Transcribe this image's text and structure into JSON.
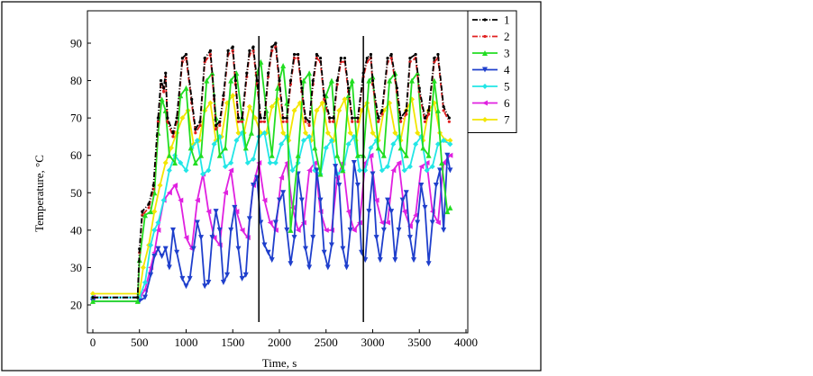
{
  "chart_data": {
    "type": "line",
    "xlabel": "Time, s",
    "ylabel": "Temperature, °C",
    "xlim": [
      0,
      4000
    ],
    "ylim": [
      15,
      92
    ],
    "xticks": [
      0,
      500,
      1000,
      1500,
      2000,
      2500,
      3000,
      3500,
      4000
    ],
    "yticks": [
      20,
      30,
      40,
      50,
      60,
      70,
      80,
      90
    ],
    "grid": false,
    "legend_position": "top-right",
    "vertical_markers": [
      1780,
      2900
    ],
    "series": [
      {
        "name": "1",
        "color": "#000000",
        "marker": "dot",
        "dash": "6,2,1,2",
        "x": [
          0,
          480,
          500,
          530,
          600,
          650,
          700,
          730,
          760,
          780,
          800,
          860,
          900,
          960,
          1000,
          1060,
          1100,
          1150,
          1200,
          1260,
          1300,
          1320,
          1360,
          1400,
          1450,
          1500,
          1530,
          1560,
          1600,
          1650,
          1680,
          1720,
          1760,
          1800,
          1840,
          1880,
          1920,
          1960,
          2000,
          2040,
          2080,
          2120,
          2160,
          2200,
          2240,
          2280,
          2320,
          2360,
          2400,
          2440,
          2480,
          2540,
          2580,
          2620,
          2660,
          2700,
          2740,
          2780,
          2840,
          2900,
          2940,
          2980,
          3000,
          3060,
          3100,
          3160,
          3200,
          3260,
          3300,
          3360,
          3400,
          3460,
          3500,
          3560,
          3600,
          3660,
          3700,
          3760,
          3820
        ],
        "y": [
          22,
          22,
          35,
          45,
          47,
          52,
          70,
          80,
          78,
          82,
          70,
          66,
          70,
          86,
          87,
          75,
          67,
          69,
          86,
          88,
          76,
          68,
          69,
          76,
          88,
          89,
          80,
          70,
          70,
          82,
          88,
          89,
          80,
          70,
          70,
          82,
          89,
          90,
          80,
          70,
          70,
          80,
          87,
          87,
          78,
          70,
          69,
          80,
          87,
          86,
          76,
          70,
          70,
          80,
          86,
          86,
          78,
          70,
          70,
          82,
          86,
          87,
          80,
          70,
          72,
          86,
          87,
          78,
          70,
          72,
          86,
          87,
          78,
          70,
          72,
          86,
          87,
          73,
          70
        ]
      },
      {
        "name": "2",
        "color": "#e02020",
        "marker": "dot",
        "dash": "6,2,1,2",
        "x": [
          0,
          480,
          500,
          530,
          600,
          650,
          700,
          730,
          760,
          780,
          800,
          860,
          900,
          960,
          1000,
          1060,
          1100,
          1150,
          1200,
          1260,
          1300,
          1320,
          1360,
          1400,
          1450,
          1500,
          1530,
          1560,
          1600,
          1650,
          1680,
          1720,
          1760,
          1800,
          1840,
          1880,
          1920,
          1960,
          2000,
          2040,
          2080,
          2120,
          2160,
          2200,
          2240,
          2280,
          2320,
          2360,
          2400,
          2440,
          2480,
          2540,
          2580,
          2620,
          2660,
          2700,
          2740,
          2780,
          2840,
          2900,
          2940,
          2980,
          3000,
          3060,
          3100,
          3160,
          3200,
          3260,
          3300,
          3360,
          3400,
          3460,
          3500,
          3560,
          3600,
          3660,
          3700,
          3760,
          3820
        ],
        "y": [
          22,
          22,
          34,
          44,
          46,
          51,
          69,
          79,
          77,
          81,
          69,
          65,
          69,
          85,
          86,
          74,
          66,
          68,
          85,
          87,
          75,
          67,
          68,
          75,
          87,
          88,
          79,
          69,
          69,
          81,
          87,
          88,
          79,
          69,
          69,
          81,
          88,
          89,
          79,
          69,
          69,
          79,
          86,
          86,
          77,
          69,
          68,
          79,
          86,
          85,
          75,
          69,
          69,
          79,
          85,
          85,
          77,
          69,
          69,
          81,
          85,
          86,
          79,
          69,
          71,
          85,
          86,
          77,
          69,
          71,
          85,
          86,
          77,
          69,
          71,
          85,
          86,
          72,
          69
        ]
      },
      {
        "name": "3",
        "color": "#22dd22",
        "marker": "triangle",
        "x": [
          0,
          480,
          500,
          560,
          620,
          660,
          700,
          740,
          780,
          820,
          880,
          940,
          1000,
          1050,
          1100,
          1160,
          1220,
          1280,
          1320,
          1360,
          1420,
          1480,
          1540,
          1600,
          1640,
          1700,
          1760,
          1800,
          1860,
          1920,
          1980,
          2040,
          2080,
          2120,
          2200,
          2260,
          2320,
          2380,
          2440,
          2500,
          2560,
          2620,
          2680,
          2740,
          2780,
          2840,
          2900,
          2960,
          3000,
          3060,
          3120,
          3180,
          3240,
          3300,
          3360,
          3420,
          3480,
          3540,
          3600,
          3660,
          3700,
          3740,
          3800,
          3830
        ],
        "y": [
          21,
          21,
          32,
          44,
          45,
          50,
          66,
          75,
          72,
          60,
          58,
          76,
          78,
          62,
          58,
          60,
          80,
          82,
          70,
          60,
          62,
          80,
          82,
          70,
          62,
          66,
          82,
          85,
          72,
          60,
          78,
          84,
          74,
          40,
          60,
          80,
          82,
          62,
          55,
          76,
          80,
          60,
          56,
          76,
          80,
          60,
          60,
          80,
          81,
          62,
          60,
          80,
          82,
          62,
          60,
          80,
          82,
          62,
          60,
          80,
          72,
          58,
          45,
          46
        ]
      },
      {
        "name": "4",
        "color": "#1f3fcc",
        "marker": "triangle-down",
        "x": [
          0,
          500,
          560,
          620,
          660,
          700,
          740,
          780,
          820,
          860,
          900,
          960,
          1000,
          1040,
          1080,
          1120,
          1160,
          1200,
          1240,
          1280,
          1320,
          1360,
          1400,
          1440,
          1480,
          1520,
          1560,
          1600,
          1640,
          1680,
          1720,
          1760,
          1800,
          1840,
          1880,
          1920,
          1960,
          2000,
          2040,
          2080,
          2120,
          2160,
          2200,
          2240,
          2280,
          2320,
          2360,
          2400,
          2440,
          2480,
          2520,
          2560,
          2600,
          2640,
          2680,
          2720,
          2760,
          2800,
          2840,
          2880,
          2920,
          2960,
          3000,
          3040,
          3080,
          3120,
          3160,
          3200,
          3240,
          3280,
          3320,
          3360,
          3400,
          3440,
          3480,
          3520,
          3560,
          3600,
          3640,
          3680,
          3720,
          3760,
          3800,
          3830
        ],
        "y": [
          21,
          21,
          22,
          28,
          33,
          35,
          33,
          35,
          30,
          40,
          34,
          27,
          25,
          27,
          35,
          42,
          38,
          25,
          26,
          38,
          45,
          40,
          26,
          28,
          40,
          46,
          35,
          27,
          28,
          43,
          52,
          54,
          42,
          36,
          34,
          32,
          42,
          48,
          50,
          40,
          31,
          38,
          55,
          48,
          35,
          30,
          38,
          56,
          48,
          34,
          30,
          36,
          57,
          52,
          35,
          30,
          40,
          58,
          52,
          34,
          32,
          45,
          55,
          38,
          32,
          40,
          48,
          45,
          32,
          40,
          48,
          50,
          38,
          32,
          42,
          52,
          46,
          31,
          42,
          52,
          56,
          40,
          60,
          56
        ]
      },
      {
        "name": "5",
        "color": "#22e6e6",
        "marker": "diamond",
        "x": [
          0,
          500,
          560,
          620,
          660,
          700,
          760,
          820,
          880,
          940,
          1000,
          1060,
          1120,
          1180,
          1240,
          1300,
          1360,
          1420,
          1480,
          1540,
          1600,
          1660,
          1720,
          1780,
          1840,
          1900,
          1960,
          2020,
          2080,
          2140,
          2200,
          2260,
          2320,
          2380,
          2440,
          2500,
          2560,
          2620,
          2680,
          2740,
          2800,
          2860,
          2920,
          2980,
          3040,
          3100,
          3160,
          3220,
          3280,
          3340,
          3400,
          3460,
          3520,
          3580,
          3640,
          3700,
          3760,
          3830
        ],
        "y": [
          22,
          22,
          26,
          36,
          40,
          42,
          48,
          56,
          60,
          58,
          56,
          62,
          64,
          55,
          56,
          63,
          65,
          57,
          58,
          64,
          66,
          58,
          59,
          65,
          66,
          58,
          58,
          63,
          65,
          56,
          58,
          64,
          65,
          56,
          55,
          62,
          64,
          55,
          56,
          63,
          65,
          56,
          56,
          62,
          64,
          56,
          57,
          63,
          65,
          56,
          57,
          63,
          65,
          56,
          57,
          63,
          64,
          63
        ]
      },
      {
        "name": "6",
        "color": "#e020e0",
        "marker": "triangle-left",
        "x": [
          0,
          500,
          560,
          620,
          660,
          700,
          760,
          820,
          880,
          940,
          1000,
          1060,
          1120,
          1180,
          1240,
          1300,
          1360,
          1420,
          1480,
          1540,
          1600,
          1660,
          1720,
          1780,
          1840,
          1900,
          1960,
          2020,
          2080,
          2140,
          2200,
          2260,
          2320,
          2380,
          2440,
          2500,
          2560,
          2620,
          2680,
          2740,
          2800,
          2860,
          2920,
          2980,
          3040,
          3100,
          3160,
          3220,
          3280,
          3340,
          3400,
          3460,
          3520,
          3580,
          3640,
          3700,
          3760,
          3830
        ],
        "y": [
          22,
          22,
          24,
          30,
          34,
          40,
          48,
          50,
          52,
          48,
          38,
          35,
          48,
          55,
          45,
          38,
          36,
          50,
          56,
          45,
          40,
          38,
          52,
          58,
          48,
          42,
          40,
          54,
          58,
          46,
          40,
          42,
          56,
          58,
          45,
          40,
          40,
          54,
          58,
          45,
          40,
          42,
          58,
          60,
          48,
          42,
          42,
          56,
          58,
          45,
          41,
          44,
          57,
          58,
          45,
          42,
          58,
          60
        ]
      },
      {
        "name": "7",
        "color": "#f2e600",
        "marker": "diamond",
        "x": [
          0,
          500,
          540,
          600,
          660,
          720,
          780,
          840,
          900,
          960,
          1020,
          1080,
          1140,
          1200,
          1260,
          1320,
          1380,
          1440,
          1500,
          1560,
          1620,
          1680,
          1740,
          1800,
          1860,
          1920,
          1980,
          2040,
          2100,
          2160,
          2220,
          2280,
          2340,
          2400,
          2460,
          2520,
          2580,
          2640,
          2700,
          2760,
          2820,
          2880,
          2940,
          3000,
          3060,
          3120,
          3180,
          3240,
          3300,
          3360,
          3420,
          3480,
          3540,
          3600,
          3660,
          3720,
          3780,
          3830
        ],
        "y": [
          23,
          23,
          30,
          36,
          45,
          52,
          58,
          62,
          66,
          70,
          72,
          63,
          64,
          72,
          74,
          64,
          65,
          74,
          76,
          66,
          66,
          73,
          70,
          66,
          66,
          73,
          75,
          66,
          64,
          72,
          74,
          66,
          64,
          72,
          74,
          66,
          64,
          72,
          75,
          66,
          64,
          72,
          74,
          66,
          64,
          72,
          74,
          66,
          64,
          72,
          75,
          66,
          64,
          72,
          74,
          66,
          64,
          64
        ]
      }
    ]
  }
}
